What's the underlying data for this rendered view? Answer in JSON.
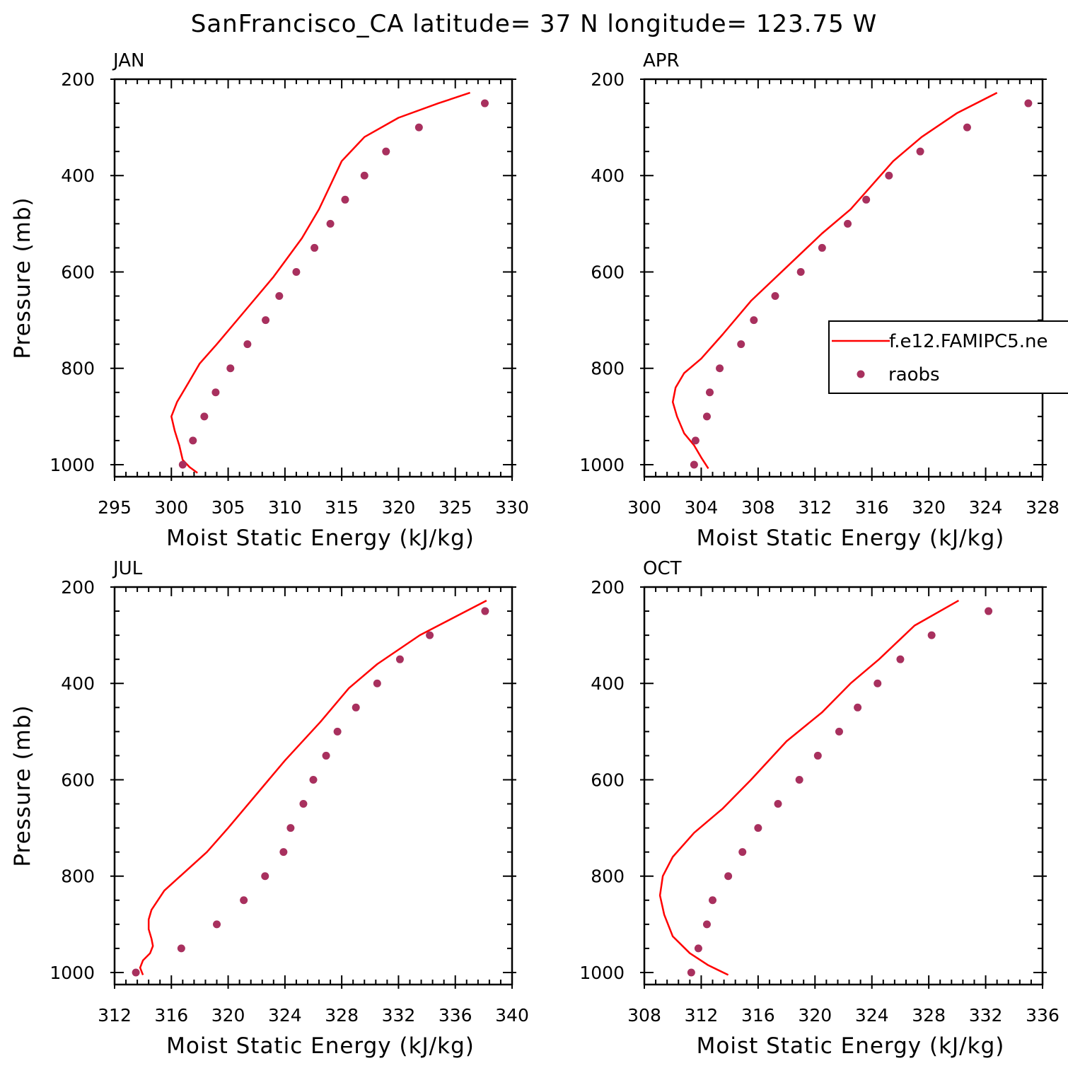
{
  "title": "SanFrancisco_CA  latitude= 37 N longitude= 123.75 W",
  "colors": {
    "model_line": "#ff0000",
    "raobs_marker": "#a8305e",
    "axes": "#000000"
  },
  "legend": {
    "placement": "right-middle of APR panel, clipped by image edge",
    "entries": [
      {
        "label": "f.e12.FAMIPC5.ne",
        "kind": "line",
        "series": "model"
      },
      {
        "label": "raobs",
        "kind": "marker",
        "series": "raobs"
      }
    ]
  },
  "chart_data": [
    {
      "panel": "JAN",
      "type": "line",
      "xlabel": "Moist Static Energy (kJ/kg)",
      "ylabel": "Pressure (mb)",
      "xlim": [
        295,
        330
      ],
      "ylim": [
        1025,
        200
      ],
      "y_reversed": true,
      "xticks": [
        295,
        300,
        305,
        310,
        315,
        320,
        325,
        330
      ],
      "yticks": [
        200,
        400,
        600,
        800,
        1000
      ],
      "series": [
        {
          "name": "f.e12.FAMIPC5.ne",
          "style": "line",
          "x": [
            302.3,
            301.6,
            301.0,
            300.7,
            300.3,
            300.0,
            300.5,
            301.5,
            302.5,
            304.0,
            306.5,
            309.0,
            311.5,
            313.0,
            314.0,
            315.0,
            317.0,
            320.0,
            323.5,
            326.3
          ],
          "y": [
            1017,
            1005,
            990,
            960,
            930,
            900,
            870,
            830,
            790,
            750,
            680,
            610,
            530,
            470,
            420,
            370,
            320,
            280,
            250,
            228
          ]
        },
        {
          "name": "raobs",
          "style": "marker",
          "x": [
            301.0,
            301.9,
            302.9,
            303.9,
            305.2,
            306.7,
            308.3,
            309.5,
            311.0,
            312.6,
            314.0,
            315.3,
            317.0,
            318.9,
            321.8,
            327.6
          ],
          "y": [
            1000,
            950,
            900,
            850,
            800,
            750,
            700,
            650,
            600,
            550,
            500,
            450,
            400,
            350,
            300,
            250
          ]
        }
      ]
    },
    {
      "panel": "APR",
      "type": "line",
      "xlabel": "Moist Static Energy (kJ/kg)",
      "ylabel": "",
      "xlim": [
        300,
        328
      ],
      "ylim": [
        1025,
        200
      ],
      "y_reversed": true,
      "xticks": [
        300,
        304,
        308,
        312,
        316,
        320,
        324,
        328
      ],
      "yticks": [
        200,
        400,
        600,
        800,
        1000
      ],
      "series": [
        {
          "name": "f.e12.FAMIPC5.ne",
          "style": "line",
          "x": [
            304.5,
            304.0,
            303.5,
            302.8,
            302.3,
            302.0,
            302.2,
            302.8,
            304.0,
            305.5,
            307.5,
            310.0,
            312.5,
            314.5,
            316.0,
            317.5,
            319.5,
            322.0,
            324.8
          ],
          "y": [
            1008,
            985,
            960,
            935,
            900,
            870,
            840,
            810,
            780,
            730,
            660,
            590,
            520,
            470,
            420,
            370,
            320,
            270,
            228
          ]
        },
        {
          "name": "raobs",
          "style": "marker",
          "x": [
            303.5,
            303.6,
            304.4,
            304.6,
            305.3,
            306.8,
            307.7,
            309.2,
            311.0,
            312.5,
            314.3,
            315.6,
            317.2,
            319.4,
            322.7,
            327.0
          ],
          "y": [
            1000,
            950,
            900,
            850,
            800,
            750,
            700,
            650,
            600,
            550,
            500,
            450,
            400,
            350,
            300,
            250
          ]
        }
      ]
    },
    {
      "panel": "JUL",
      "type": "line",
      "xlabel": "Moist Static Energy (kJ/kg)",
      "ylabel": "Pressure (mb)",
      "xlim": [
        312,
        340
      ],
      "ylim": [
        1025,
        200
      ],
      "y_reversed": true,
      "xticks": [
        312,
        316,
        320,
        324,
        328,
        332,
        336,
        340
      ],
      "yticks": [
        200,
        400,
        600,
        800,
        1000
      ],
      "series": [
        {
          "name": "f.e12.FAMIPC5.ne",
          "style": "line",
          "x": [
            314.0,
            313.8,
            314.0,
            314.5,
            314.7,
            314.6,
            314.4,
            314.4,
            314.6,
            315.5,
            317.0,
            318.5,
            320.0,
            322.0,
            324.0,
            326.5,
            328.5,
            330.5,
            333.5,
            338.2
          ],
          "y": [
            1005,
            990,
            975,
            960,
            945,
            930,
            910,
            890,
            870,
            830,
            790,
            750,
            700,
            630,
            560,
            480,
            410,
            360,
            300,
            228
          ]
        },
        {
          "name": "raobs",
          "style": "marker",
          "x": [
            313.5,
            316.7,
            319.2,
            321.1,
            322.6,
            323.9,
            324.4,
            325.3,
            326.0,
            326.9,
            327.7,
            329.0,
            330.5,
            332.1,
            334.2,
            338.1
          ],
          "y": [
            1000,
            950,
            900,
            850,
            800,
            750,
            700,
            650,
            600,
            550,
            500,
            450,
            400,
            350,
            300,
            250
          ]
        }
      ]
    },
    {
      "panel": "OCT",
      "type": "line",
      "xlabel": "Moist Static Energy (kJ/kg)",
      "ylabel": "",
      "xlim": [
        308,
        336
      ],
      "ylim": [
        1025,
        200
      ],
      "y_reversed": true,
      "xticks": [
        308,
        312,
        316,
        320,
        324,
        328,
        332,
        336
      ],
      "yticks": [
        200,
        400,
        600,
        800,
        1000
      ],
      "series": [
        {
          "name": "f.e12.FAMIPC5.ne",
          "style": "line",
          "x": [
            313.9,
            312.5,
            311.2,
            310.0,
            309.4,
            309.1,
            309.3,
            310.0,
            311.5,
            313.5,
            315.5,
            318.0,
            320.5,
            322.5,
            324.5,
            327.0,
            330.1
          ],
          "y": [
            1005,
            985,
            960,
            925,
            880,
            840,
            800,
            760,
            710,
            660,
            600,
            520,
            460,
            400,
            350,
            280,
            228
          ]
        },
        {
          "name": "raobs",
          "style": "marker",
          "x": [
            311.3,
            311.8,
            312.4,
            312.8,
            313.9,
            314.9,
            316.0,
            317.4,
            318.9,
            320.2,
            321.7,
            323.0,
            324.4,
            326.0,
            328.2,
            332.2
          ],
          "y": [
            1000,
            950,
            900,
            850,
            800,
            750,
            700,
            650,
            600,
            550,
            500,
            450,
            400,
            350,
            300,
            250
          ]
        }
      ]
    }
  ]
}
